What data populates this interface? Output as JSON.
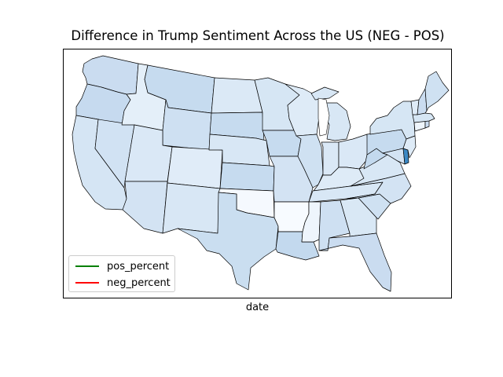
{
  "title": "Difference in Trump Sentiment Across the US (NEG - POS)",
  "xlabel": "date",
  "legend": [
    {
      "label": "pos_percent",
      "color": "#008000"
    },
    {
      "label": "neg_percent",
      "color": "#ff0000"
    }
  ],
  "colormap": "Blues",
  "states": [
    {
      "id": "WA",
      "fill": "#cadcf0"
    },
    {
      "id": "OR",
      "fill": "#c6daef"
    },
    {
      "id": "CA",
      "fill": "#d5e5f4"
    },
    {
      "id": "NV",
      "fill": "#d1e2f3"
    },
    {
      "id": "ID",
      "fill": "#e4eff9"
    },
    {
      "id": "MT",
      "fill": "#c6dbef"
    },
    {
      "id": "WY",
      "fill": "#cee0f2"
    },
    {
      "id": "UT",
      "fill": "#dae8f6"
    },
    {
      "id": "AZ",
      "fill": "#d3e3f3"
    },
    {
      "id": "CO",
      "fill": "#e0ecf8"
    },
    {
      "id": "NM",
      "fill": "#d8e7f5"
    },
    {
      "id": "ND",
      "fill": "#dbe9f6"
    },
    {
      "id": "SD",
      "fill": "#c6dbef"
    },
    {
      "id": "NE",
      "fill": "#d8e7f5"
    },
    {
      "id": "KS",
      "fill": "#c6dbef"
    },
    {
      "id": "OK",
      "fill": "#f5f9fe"
    },
    {
      "id": "TX",
      "fill": "#cadef0"
    },
    {
      "id": "MN",
      "fill": "#d6e6f4"
    },
    {
      "id": "IA",
      "fill": "#c6dbef"
    },
    {
      "id": "MO",
      "fill": "#d3e3f3"
    },
    {
      "id": "AR",
      "fill": "#f7fbff"
    },
    {
      "id": "LA",
      "fill": "#c3d9ee"
    },
    {
      "id": "WI",
      "fill": "#deebf7"
    },
    {
      "id": "IL",
      "fill": "#cfe1f2"
    },
    {
      "id": "MI",
      "fill": "#d8e7f5"
    },
    {
      "id": "IN",
      "fill": "#dae8f6"
    },
    {
      "id": "OH",
      "fill": "#dae8f6"
    },
    {
      "id": "KY",
      "fill": "#deebf7"
    },
    {
      "id": "TN",
      "fill": "#d8e7f5"
    },
    {
      "id": "MS",
      "fill": "#eef5fc"
    },
    {
      "id": "AL",
      "fill": "#cee0f2"
    },
    {
      "id": "GA",
      "fill": "#d9e8f5"
    },
    {
      "id": "FL",
      "fill": "#cadcf0"
    },
    {
      "id": "SC",
      "fill": "#cfe1f2"
    },
    {
      "id": "NC",
      "fill": "#d3e3f3"
    },
    {
      "id": "VA",
      "fill": "#d8e7f5"
    },
    {
      "id": "WV",
      "fill": "#c3d9ee"
    },
    {
      "id": "PA",
      "fill": "#c6dbef"
    },
    {
      "id": "NY",
      "fill": "#d6e6f4"
    },
    {
      "id": "MD",
      "fill": "#d3e3f3"
    },
    {
      "id": "DE",
      "fill": "#3b88c4"
    },
    {
      "id": "NJ",
      "fill": "#deebf7"
    },
    {
      "id": "CT",
      "fill": "#eef5fc"
    },
    {
      "id": "RI",
      "fill": "#cadcf0"
    },
    {
      "id": "MA",
      "fill": "#d6e6f4"
    },
    {
      "id": "VT",
      "fill": "#deebf7"
    },
    {
      "id": "NH",
      "fill": "#cadcf0"
    },
    {
      "id": "ME",
      "fill": "#cfe1f2"
    }
  ]
}
